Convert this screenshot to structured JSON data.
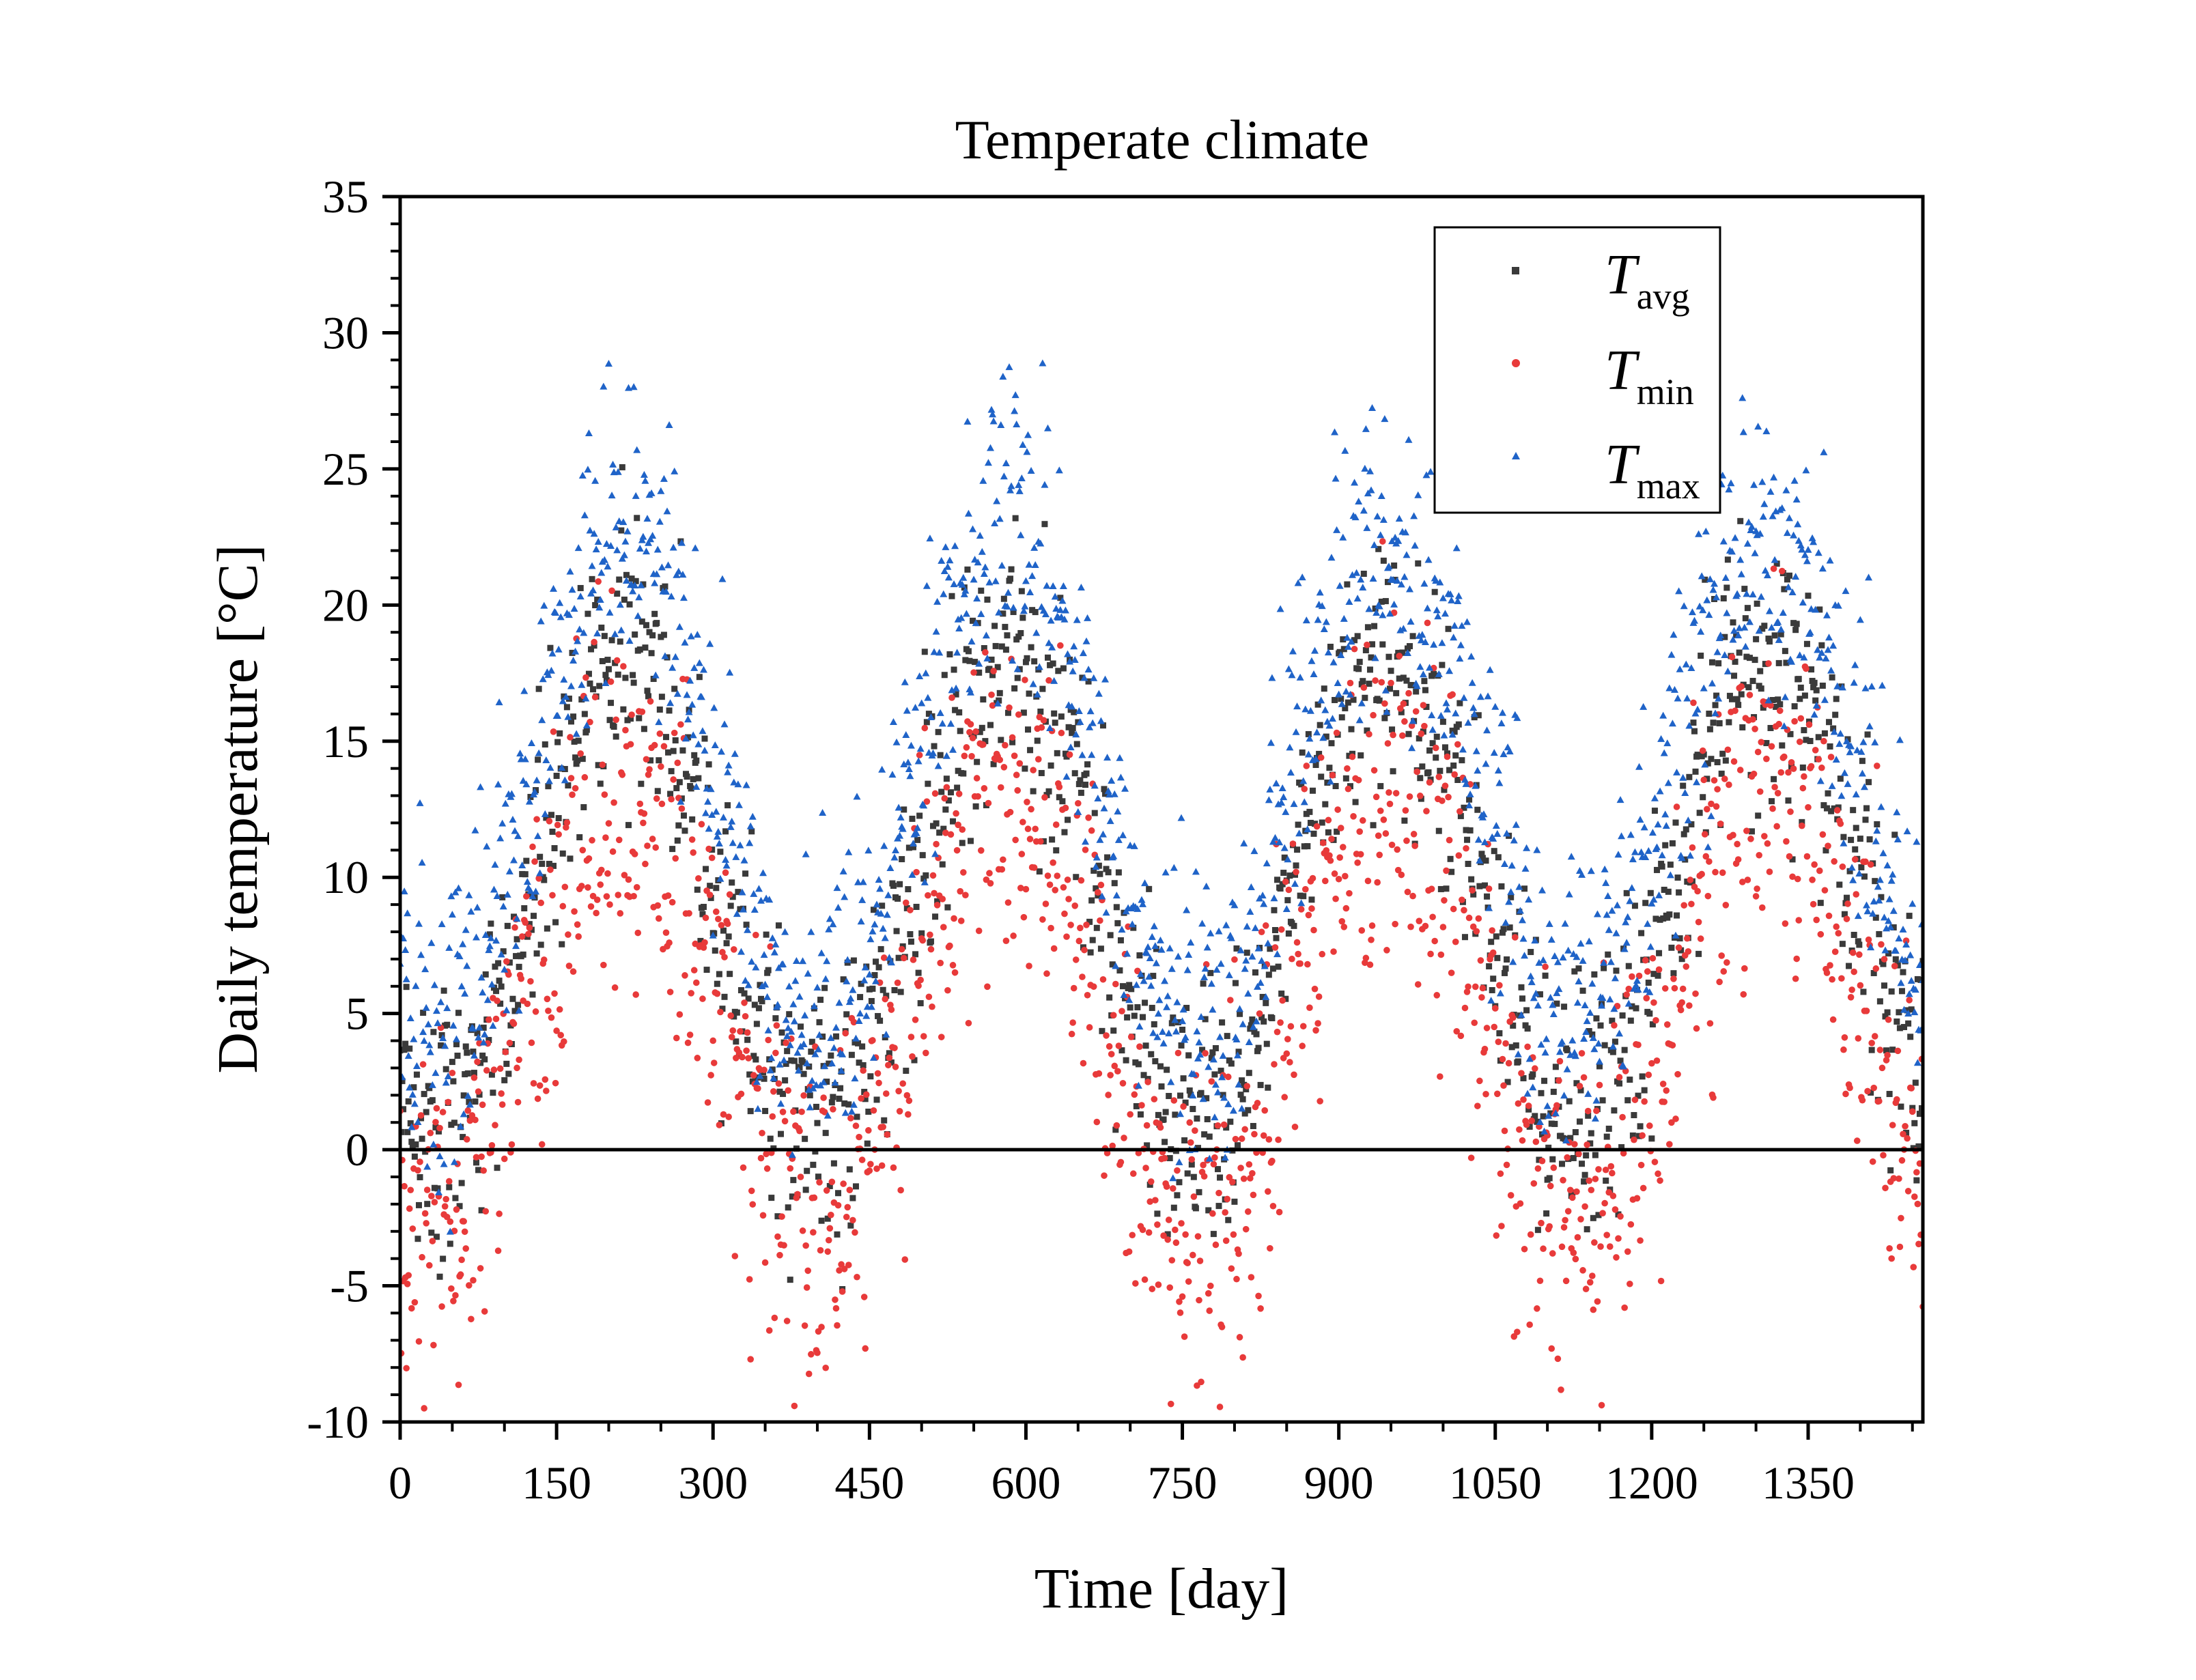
{
  "chart_data": {
    "type": "scatter",
    "title": "Temperate climate",
    "xlabel": "Time [day]",
    "ylabel": "Daily temperature [°C]",
    "xlim": [
      0,
      1460
    ],
    "ylim": [
      -10,
      35
    ],
    "x_ticks": [
      0,
      150,
      300,
      450,
      600,
      750,
      900,
      1050,
      1200,
      1350
    ],
    "y_ticks": [
      -10,
      -5,
      0,
      5,
      10,
      15,
      20,
      25,
      30,
      35
    ],
    "x_tick_labels": [
      "0",
      "150",
      "300",
      "450",
      "600",
      "750",
      "900",
      "1050",
      "1200",
      "1350"
    ],
    "y_tick_labels": [
      "-10",
      "-5",
      "0",
      "5",
      "10",
      "15",
      "20",
      "25",
      "30",
      "35"
    ],
    "reference_line_y": 0,
    "grid": false,
    "legend_position": "top-right",
    "series": [
      {
        "name": "T_avg",
        "label_main": "T",
        "label_sub": "avg",
        "marker": "square",
        "color": "#3a3a3a",
        "seasonal_model": {
          "period_days": 365,
          "mean": 9.5,
          "amplitude": 8.5,
          "peak_day": 215,
          "spread": 2.6
        },
        "x": [
          0,
          10,
          20,
          35,
          50,
          65,
          80,
          100,
          120,
          150,
          170,
          190,
          200,
          215,
          230,
          250,
          270,
          290,
          310,
          330,
          350,
          365,
          380,
          400,
          420,
          450,
          480,
          520,
          550,
          580,
          600,
          620,
          640,
          660,
          700,
          730,
          750,
          760,
          780,
          800,
          830,
          870,
          900,
          930,
          950,
          970,
          1000,
          1030,
          1060,
          1080,
          1100,
          1120,
          1150,
          1180,
          1200,
          1240,
          1270,
          1300,
          1320,
          1340,
          1360,
          1380,
          1400,
          1420,
          1440,
          1460
        ],
        "y": [
          2.0,
          1.0,
          0.5,
          1.0,
          0.8,
          2.5,
          4.0,
          8.5,
          11.0,
          14.0,
          16.5,
          19.0,
          20.0,
          21.0,
          20.5,
          18.5,
          17.0,
          14.5,
          9.0,
          6.5,
          4.0,
          3.0,
          2.0,
          3.5,
          5.5,
          9.0,
          11.5,
          15.0,
          17.0,
          18.5,
          19.5,
          18.5,
          16.0,
          13.5,
          7.0,
          5.0,
          3.5,
          2.5,
          3.0,
          4.5,
          7.0,
          11.0,
          14.5,
          16.5,
          18.0,
          17.5,
          14.0,
          11.0,
          7.0,
          4.5,
          2.5,
          1.5,
          1.5,
          3.5,
          6.5,
          11.5,
          15.5,
          19.0,
          20.0,
          20.5,
          19.5,
          15.5,
          11.5,
          8.0,
          4.0,
          1.5
        ]
      },
      {
        "name": "T_min",
        "label_main": "T",
        "label_sub": "min",
        "marker": "circle",
        "color": "#e83a3a",
        "seasonal_model": {
          "period_days": 365,
          "mean": 5.5,
          "amplitude": 8.0,
          "peak_day": 215,
          "spread": 3.4
        },
        "x": [
          0,
          10,
          25,
          40,
          55,
          70,
          90,
          110,
          130,
          150,
          170,
          190,
          205,
          220,
          240,
          260,
          280,
          300,
          320,
          340,
          360,
          380,
          400,
          420,
          450,
          480,
          510,
          540,
          570,
          600,
          630,
          660,
          690,
          720,
          740,
          760,
          780,
          800,
          830,
          860,
          890,
          920,
          950,
          980,
          1010,
          1040,
          1070,
          1090,
          1110,
          1130,
          1150,
          1170,
          1200,
          1230,
          1260,
          1290,
          1320,
          1340,
          1360,
          1380,
          1400,
          1420,
          1440,
          1460
        ],
        "y": [
          -4.0,
          -3.0,
          -2.0,
          -2.5,
          -4.5,
          -1.0,
          1.5,
          4.5,
          8.0,
          10.5,
          13.0,
          15.5,
          16.5,
          17.0,
          15.5,
          13.5,
          11.0,
          6.5,
          2.0,
          -1.0,
          -2.5,
          -3.0,
          -2.0,
          0.0,
          3.0,
          7.0,
          10.0,
          12.5,
          14.5,
          15.0,
          12.5,
          9.0,
          3.5,
          0.0,
          -2.0,
          -3.5,
          -1.0,
          0.5,
          3.0,
          6.5,
          10.5,
          13.0,
          14.5,
          13.0,
          10.0,
          6.0,
          1.5,
          -1.5,
          -3.5,
          -4.0,
          -3.5,
          -1.0,
          2.0,
          6.5,
          11.0,
          14.0,
          16.5,
          17.0,
          14.5,
          11.0,
          7.0,
          3.0,
          -1.0,
          -3.0
        ]
      },
      {
        "name": "T_max",
        "label_main": "T",
        "label_sub": "max",
        "marker": "triangle",
        "color": "#1f63c8",
        "seasonal_model": {
          "period_days": 365,
          "mean": 13.5,
          "amplitude": 9.0,
          "peak_day": 215,
          "spread": 2.8
        },
        "x": [
          0,
          15,
          30,
          45,
          60,
          80,
          100,
          120,
          140,
          160,
          180,
          200,
          215,
          230,
          250,
          270,
          290,
          310,
          330,
          350,
          370,
          390,
          410,
          430,
          460,
          490,
          520,
          550,
          580,
          610,
          635,
          660,
          690,
          720,
          750,
          780,
          810,
          840,
          870,
          900,
          930,
          960,
          990,
          1020,
          1050,
          1080,
          1110,
          1140,
          1170,
          1200,
          1230,
          1260,
          1290,
          1310,
          1330,
          1350,
          1370,
          1390,
          1410,
          1430,
          1450,
          1460
        ],
        "y": [
          7.0,
          6.0,
          5.5,
          5.0,
          6.5,
          9.0,
          12.0,
          15.0,
          17.5,
          20.0,
          22.5,
          24.0,
          24.5,
          23.5,
          21.5,
          19.5,
          17.0,
          13.0,
          10.0,
          8.0,
          7.0,
          7.5,
          8.5,
          10.5,
          14.0,
          17.5,
          20.0,
          22.0,
          23.0,
          22.0,
          19.5,
          16.0,
          11.5,
          9.0,
          8.0,
          8.0,
          8.5,
          10.5,
          13.5,
          17.5,
          19.5,
          20.5,
          19.5,
          17.0,
          13.5,
          10.0,
          8.0,
          7.5,
          9.0,
          12.0,
          16.0,
          19.5,
          22.5,
          24.0,
          24.5,
          23.0,
          19.0,
          15.0,
          11.0,
          8.0,
          7.0,
          6.0
        ]
      }
    ]
  }
}
